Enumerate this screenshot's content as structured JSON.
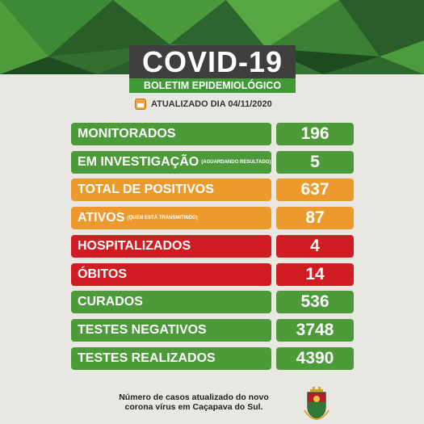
{
  "header": {
    "title": "COVID-19",
    "subtitle": "BOLETIM EPIDEMIOLÓGICO",
    "updated": "ATUALIZADO DIA 04/11/2020",
    "icon": "calendar-icon"
  },
  "rows": [
    {
      "label": "MONITORADOS",
      "note": "",
      "value": "196",
      "color": "#4c9a3a"
    },
    {
      "label": "EM INVESTIGAÇÃO",
      "note": "(AGUARDANDO RESULTADO)",
      "value": "5",
      "color": "#4c9a3a"
    },
    {
      "label": "TOTAL DE POSITIVOS",
      "note": "",
      "value": "637",
      "color": "#ec9a2e"
    },
    {
      "label": "ATIVOS",
      "note": "(QUEM ESTÁ TRANSMITINDO)",
      "value": "87",
      "color": "#ec9a2e"
    },
    {
      "label": "HOSPITALIZADOS",
      "note": "",
      "value": "4",
      "color": "#d01d24"
    },
    {
      "label": "ÓBITOS",
      "note": "",
      "value": "14",
      "color": "#d01d24"
    },
    {
      "label": "CURADOS",
      "note": "",
      "value": "536",
      "color": "#4c9a3a"
    },
    {
      "label": "TESTES NEGATIVOS",
      "note": "",
      "value": "3748",
      "color": "#4c9a3a"
    },
    {
      "label": "TESTES REALIZADOS",
      "note": "",
      "value": "4390",
      "color": "#4c9a3a"
    }
  ],
  "footer": {
    "line1": "Número de casos atualizado do novo",
    "line2": "corona vírus em Caçapava do Sul.",
    "logo": "municipal-crest-icon"
  }
}
